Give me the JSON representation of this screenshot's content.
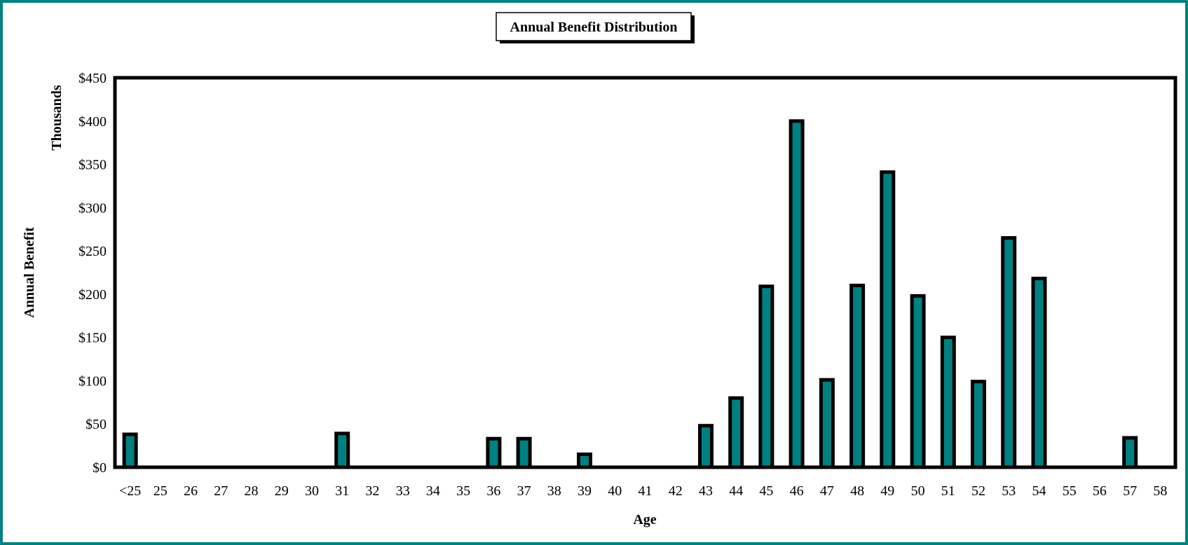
{
  "chart_data": {
    "type": "bar",
    "title": "Annual Benefit Distribution",
    "xlabel": "Age",
    "ylabel": "Annual Benefit",
    "ylabel_unit": "Thousands",
    "ylim": [
      0,
      450
    ],
    "y_ticks": [
      0,
      50,
      100,
      150,
      200,
      250,
      300,
      350,
      400,
      450
    ],
    "y_tick_labels": [
      "$0",
      "$50",
      "$100",
      "$150",
      "$200",
      "$250",
      "$300",
      "$350",
      "$400",
      "$450"
    ],
    "grid": false,
    "legend": "none",
    "colors": {
      "bar_fill": "#008080",
      "bar_stroke": "#000000",
      "frame": "#008080"
    },
    "categories": [
      "<25",
      "25",
      "26",
      "27",
      "28",
      "29",
      "30",
      "31",
      "32",
      "33",
      "34",
      "35",
      "36",
      "37",
      "38",
      "39",
      "40",
      "41",
      "42",
      "43",
      "44",
      "45",
      "46",
      "47",
      "48",
      "49",
      "50",
      "51",
      "52",
      "53",
      "54",
      "55",
      "56",
      "57",
      "58"
    ],
    "values": [
      38,
      0,
      0,
      0,
      0,
      0,
      0,
      39,
      0,
      0,
      0,
      0,
      33,
      33,
      0,
      15,
      0,
      0,
      0,
      48,
      80,
      209,
      400,
      101,
      210,
      341,
      198,
      150,
      99,
      265,
      218,
      0,
      0,
      34,
      0
    ]
  }
}
